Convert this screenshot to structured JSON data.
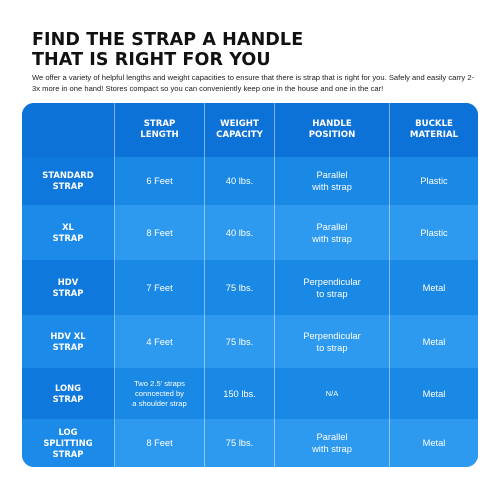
{
  "heading": {
    "line1": "FIND THE STRAP A HANDLE",
    "line2": "THAT IS RIGHT FOR YOU",
    "description": "We offer a variety of helpful lengths and weight capacities to ensure that there is strap that is right for you. Safely and easily carry 2-3x more in one hand! Stores compact so you can conveniently keep one in the house and one in the car!"
  },
  "table": {
    "columns": [
      "",
      "STRAP\nLENGTH",
      "WEIGHT\nCAPACITY",
      "HANDLE\nPOSITION",
      "BUCKLE\nMATERIAL"
    ],
    "rows": [
      {
        "name": "STANDARD\nSTRAP",
        "length": "6 Feet",
        "capacity": "40 lbs.",
        "position": "Parallel\nwith strap",
        "material": "Plastic"
      },
      {
        "name": "XL\nSTRAP",
        "length": "8 Feet",
        "capacity": "40 lbs.",
        "position": "Parallel\nwith strap",
        "material": "Plastic"
      },
      {
        "name": "HDV\nSTRAP",
        "length": "7 Feet",
        "capacity": "75 lbs.",
        "position": "Perpendicular\nto strap",
        "material": "Metal"
      },
      {
        "name": "HDV XL\nSTRAP",
        "length": "4 Feet",
        "capacity": "75 lbs.",
        "position": "Perpendicular\nto strap",
        "material": "Metal"
      },
      {
        "name": "LONG\nSTRAP",
        "length": "Two 2.5' straps\nconncected by\na shoulder strap",
        "capacity": "150 lbs.",
        "position": "N/A",
        "material": "Metal"
      },
      {
        "name": "LOG\nSPLITTING\nSTRAP",
        "length": "8 Feet",
        "capacity": "75 lbs.",
        "position": "Parallel\nwith strap",
        "material": "Metal"
      }
    ]
  }
}
